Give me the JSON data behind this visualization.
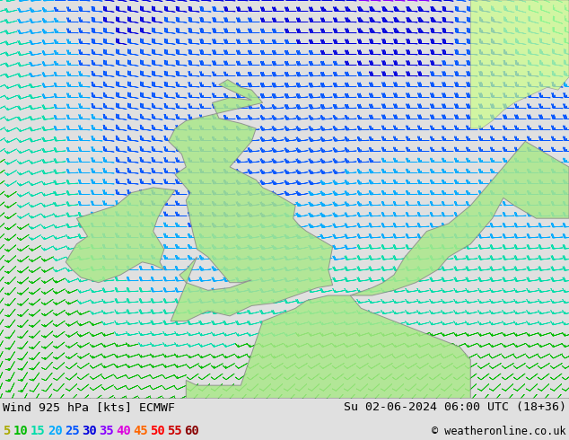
{
  "title_left": "Wind 925 hPa [kts] ECMWF",
  "title_right": "Su 02-06-2024 06:00 UTC (18+36)",
  "copyright": "© weatheronline.co.uk",
  "legend_values": [
    5,
    10,
    15,
    20,
    25,
    30,
    35,
    40,
    45,
    50,
    55,
    60
  ],
  "legend_colors": [
    "#aaaa00",
    "#00bb00",
    "#00ddaa",
    "#00aaff",
    "#0055ff",
    "#0000dd",
    "#8800ff",
    "#dd00dd",
    "#ff6600",
    "#ff0000",
    "#cc0000",
    "#880000"
  ],
  "bg_color": "#e0e0e0",
  "map_bg": "#f0f0f0",
  "land_color": "#aaddaa",
  "figsize": [
    6.34,
    4.9
  ],
  "dpi": 100,
  "extent": [
    -13.5,
    12.5,
    47.0,
    62.5
  ],
  "barb_color_bounds": [
    0,
    5,
    10,
    15,
    20,
    25,
    30,
    35,
    40,
    45,
    50,
    55,
    60,
    200
  ],
  "barb_colors": [
    "#aaaa00",
    "#aaaa00",
    "#00bb00",
    "#00ddaa",
    "#00aaff",
    "#0055ff",
    "#0000dd",
    "#8800ff",
    "#dd00dd",
    "#ff6600",
    "#ff0000",
    "#cc0000",
    "#880000"
  ]
}
